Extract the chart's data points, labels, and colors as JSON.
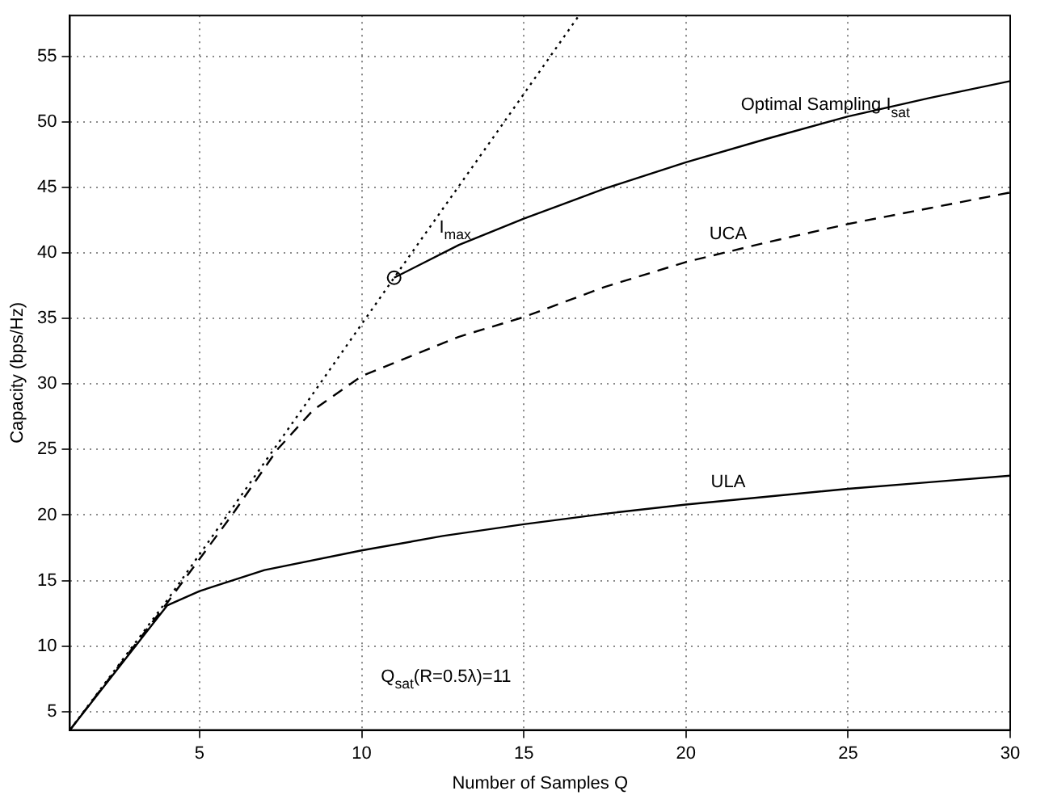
{
  "chart_data": {
    "type": "line",
    "xlabel": "Number of Samples Q",
    "ylabel": "Capacity (bps/Hz)",
    "xlim": [
      1,
      30
    ],
    "ylim": [
      3.6,
      58.1
    ],
    "xticks": [
      5,
      10,
      15,
      20,
      25,
      30
    ],
    "yticks": [
      5,
      10,
      15,
      20,
      25,
      30,
      35,
      40,
      45,
      50,
      55
    ],
    "grid": true,
    "legend": false,
    "annotations": [
      "Q$_{sat}$(R=0.5λ)=11"
    ],
    "series": [
      {
        "name": "I$_{max}$",
        "color": "#000000",
        "line_style": "dotted",
        "marker": "none",
        "x": [
          1,
          4,
          8,
          11,
          14,
          16.7
        ],
        "values": [
          3.6,
          13.5,
          27.5,
          38.1,
          48.6,
          58.1
        ]
      },
      {
        "name": "Optimal Sampling I$_{sat}$",
        "color": "#000000",
        "line_style": "solid",
        "marker": "none",
        "x": [
          11,
          13,
          15,
          17.5,
          20,
          22.5,
          25,
          27.5,
          30
        ],
        "values": [
          38.1,
          40.6,
          42.6,
          44.9,
          46.9,
          48.7,
          50.4,
          51.8,
          53.1
        ]
      },
      {
        "name": "UCA",
        "color": "#000000",
        "line_style": "dashed",
        "marker": "none",
        "x": [
          1,
          4,
          6,
          7.4,
          8.5,
          10,
          11,
          13,
          15,
          17.5,
          20,
          22.5,
          25,
          27.5,
          30
        ],
        "values": [
          3.6,
          13.3,
          20,
          25,
          28,
          30.6,
          31.6,
          33.6,
          35.1,
          37.4,
          39.3,
          40.8,
          42.2,
          43.4,
          44.6
        ]
      },
      {
        "name": "ULA",
        "color": "#000000",
        "line_style": "solid",
        "marker": "none",
        "x": [
          1,
          4,
          5,
          7,
          10,
          12.5,
          15,
          17.5,
          20,
          22.5,
          25,
          27.5,
          30
        ],
        "values": [
          3.6,
          13.1,
          14.2,
          15.8,
          17.3,
          18.4,
          19.3,
          20.1,
          20.8,
          21.4,
          22,
          22.5,
          23
        ]
      },
      {
        "type": "scatter",
        "color": "#000000",
        "marker": "circle",
        "x": [
          11
        ],
        "values": [
          38.1
        ]
      }
    ]
  }
}
